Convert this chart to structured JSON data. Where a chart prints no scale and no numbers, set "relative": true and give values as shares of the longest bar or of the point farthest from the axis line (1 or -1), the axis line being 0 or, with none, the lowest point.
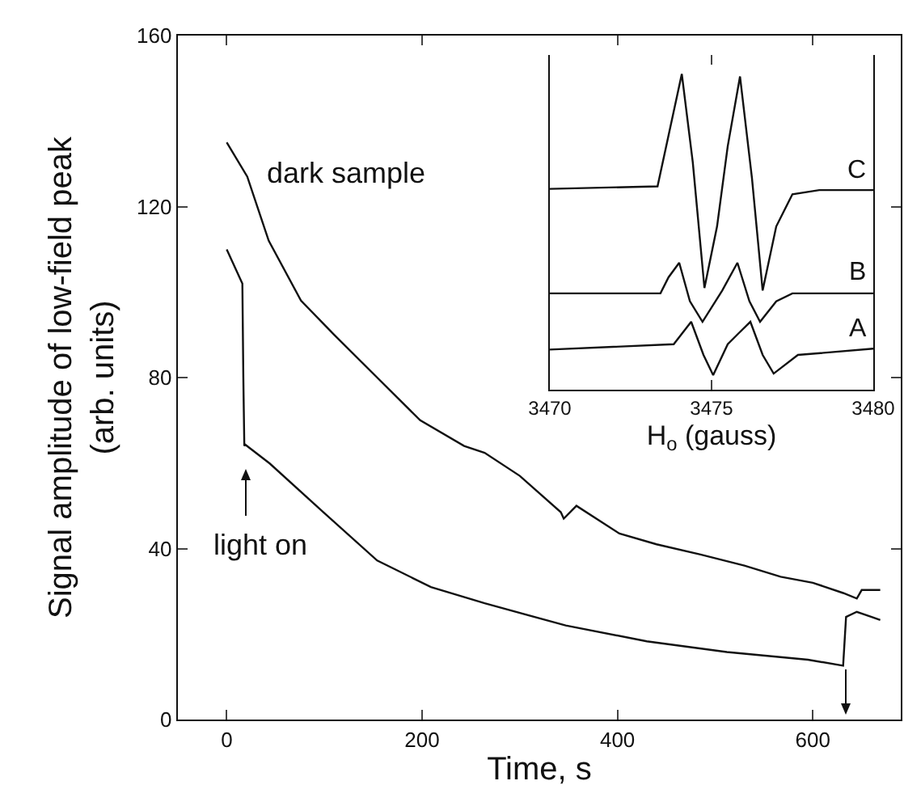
{
  "chart_data": [
    {
      "type": "line",
      "xlabel": "Time, s",
      "ylabel": "Signal amplitude of low-field peak\n(arb. units)",
      "xlim": [
        -50,
        690
      ],
      "ylim": [
        0,
        160
      ],
      "xticks": [
        0,
        200,
        400,
        600
      ],
      "yticks": [
        0,
        40,
        80,
        120,
        160
      ],
      "grid": false,
      "legend": false,
      "marker": "none",
      "line_style": "solid",
      "series": [
        {
          "name": "dark sample",
          "color": "#111111",
          "x": [
            0,
            21,
            43,
            76,
            110,
            154,
            198,
            243,
            264,
            300,
            342,
            345,
            358,
            402,
            440,
            485,
            530,
            567,
            600,
            631,
            645,
            650,
            669
          ],
          "values": [
            135,
            127,
            112,
            98,
            90,
            80,
            70,
            64,
            62.4,
            57,
            48.5,
            47,
            50,
            43.5,
            41,
            38.6,
            36,
            33.4,
            32,
            29.6,
            28.3,
            30.3,
            30.3
          ]
        },
        {
          "color": "#111111",
          "x": [
            0,
            16,
            17,
            18,
            19,
            44,
            99,
            154,
            209,
            264,
            347,
            430,
            512,
            595,
            631,
            634,
            645,
            669
          ],
          "values": [
            110,
            102,
            80,
            64,
            64.3,
            59.9,
            48.5,
            37.2,
            31,
            27.2,
            22,
            18.3,
            15.8,
            14,
            12.6,
            24,
            25.2,
            23.3
          ]
        }
      ],
      "annotations": [
        "light on"
      ]
    },
    {
      "type": "line",
      "relative": true,
      "xlabel": "H$_{o}$ (gauss)",
      "xlim": [
        3470,
        3480
      ],
      "xticks": [
        3470,
        3475,
        3480
      ],
      "grid": false,
      "legend": false,
      "marker": "none",
      "line_style": "solid",
      "series": [
        {
          "name": "C",
          "color": "#111111",
          "x": [
            3470,
            3473.33,
            3473.67,
            3474.08,
            3474.42,
            3474.78,
            3475.17,
            3475.5,
            3475.88,
            3476.25,
            3476.58,
            3477.0,
            3477.5,
            3478.33,
            3480
          ],
          "values": [
            0.636,
            0.644,
            0.805,
            1.0,
            0.72,
            0.322,
            0.517,
            0.771,
            0.992,
            0.669,
            0.314,
            0.517,
            0.619,
            0.632,
            0.632
          ]
        },
        {
          "name": "B",
          "color": "#111111",
          "x": [
            3470,
            3473.42,
            3473.67,
            3474.0,
            3474.33,
            3474.72,
            3475.33,
            3475.8,
            3476.17,
            3476.5,
            3477.0,
            3477.5,
            3480
          ],
          "values": [
            0.305,
            0.305,
            0.356,
            0.402,
            0.28,
            0.215,
            0.314,
            0.402,
            0.28,
            0.215,
            0.28,
            0.305,
            0.305
          ]
        },
        {
          "name": "A",
          "color": "#111111",
          "x": [
            3470,
            3473.83,
            3474.37,
            3474.75,
            3475.05,
            3475.5,
            3475.83,
            3476.2,
            3476.58,
            3476.92,
            3477.67,
            3480
          ],
          "values": [
            0.127,
            0.144,
            0.215,
            0.11,
            0.046,
            0.144,
            0.178,
            0.215,
            0.11,
            0.051,
            0.11,
            0.13
          ]
        }
      ]
    }
  ]
}
